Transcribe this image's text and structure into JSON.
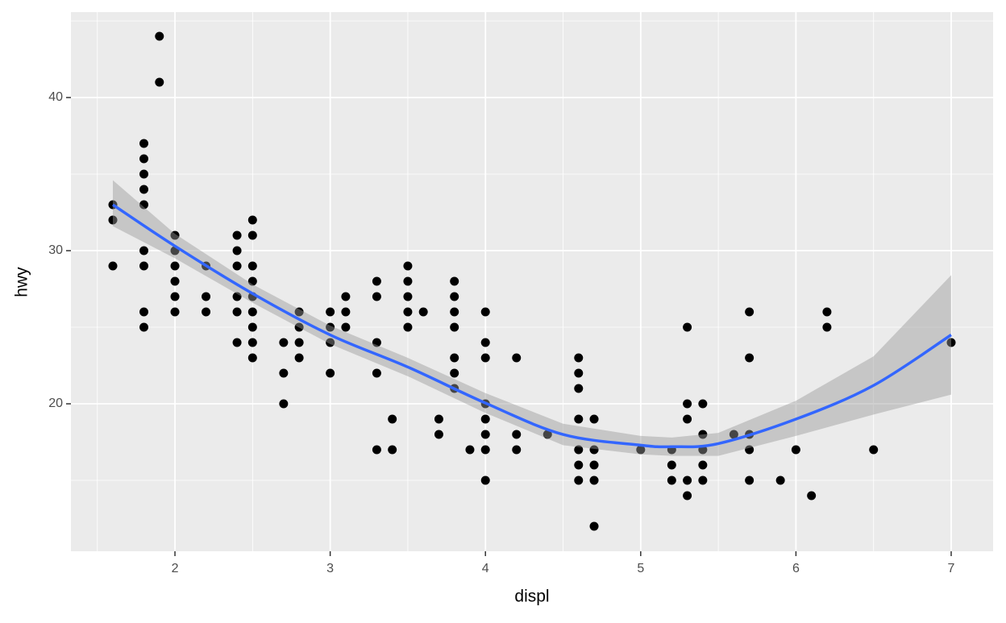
{
  "chart_data": {
    "type": "scatter",
    "x_label": "displ",
    "y_label": "hwy",
    "xlim": [
      1.33,
      7.27
    ],
    "ylim": [
      10.37,
      45.58
    ],
    "xticks": [
      2,
      3,
      4,
      5,
      6,
      7
    ],
    "yticks": [
      20,
      30,
      40
    ],
    "x_minor_grid": [
      1.5,
      2.5,
      3.5,
      4.5,
      5.5,
      6.5
    ],
    "y_minor_grid": [
      15,
      25,
      35,
      45
    ],
    "grid": true,
    "color": "#000000",
    "x": [
      1.6,
      1.6,
      1.6,
      1.8,
      1.8,
      1.8,
      1.8,
      1.8,
      1.8,
      1.8,
      1.8,
      1.8,
      1.9,
      1.9,
      2.0,
      2.0,
      2.0,
      2.0,
      2.0,
      2.0,
      2.2,
      2.2,
      2.2,
      2.4,
      2.4,
      2.4,
      2.4,
      2.4,
      2.4,
      2.5,
      2.5,
      2.5,
      2.5,
      2.5,
      2.5,
      2.5,
      2.5,
      2.5,
      2.7,
      2.7,
      2.7,
      2.8,
      2.8,
      2.8,
      2.8,
      3.0,
      3.0,
      3.0,
      3.0,
      3.1,
      3.1,
      3.1,
      3.3,
      3.3,
      3.3,
      3.3,
      3.3,
      3.4,
      3.4,
      3.5,
      3.5,
      3.5,
      3.5,
      3.5,
      3.6,
      3.7,
      3.7,
      3.8,
      3.8,
      3.8,
      3.8,
      3.8,
      3.8,
      3.8,
      3.9,
      4.0,
      4.0,
      4.0,
      4.0,
      4.0,
      4.0,
      4.0,
      4.0,
      4.2,
      4.2,
      4.2,
      4.4,
      4.6,
      4.6,
      4.6,
      4.6,
      4.6,
      4.6,
      4.6,
      4.7,
      4.7,
      4.7,
      4.7,
      4.7,
      5.0,
      5.2,
      5.2,
      5.2,
      5.3,
      5.3,
      5.3,
      5.3,
      5.3,
      5.4,
      5.4,
      5.4,
      5.4,
      5.4,
      5.6,
      5.7,
      5.7,
      5.7,
      5.7,
      5.7,
      5.9,
      6.0,
      6.1,
      6.2,
      6.2,
      6.5,
      7.0
    ],
    "y": [
      33,
      32,
      29,
      37,
      36,
      35,
      34,
      33,
      30,
      29,
      26,
      25,
      44,
      41,
      31,
      30,
      29,
      28,
      27,
      26,
      29,
      27,
      26,
      31,
      30,
      29,
      27,
      26,
      24,
      32,
      31,
      29,
      28,
      27,
      26,
      25,
      24,
      23,
      24,
      22,
      20,
      26,
      25,
      24,
      23,
      26,
      25,
      24,
      22,
      27,
      26,
      25,
      28,
      27,
      24,
      22,
      17,
      19,
      17,
      29,
      28,
      27,
      26,
      25,
      26,
      19,
      18,
      28,
      27,
      26,
      25,
      23,
      22,
      21,
      17,
      26,
      24,
      23,
      20,
      19,
      18,
      17,
      15,
      23,
      18,
      17,
      18,
      23,
      22,
      21,
      19,
      17,
      16,
      15,
      19,
      17,
      16,
      15,
      12,
      17,
      17,
      16,
      15,
      25,
      20,
      19,
      15,
      14,
      20,
      18,
      17,
      16,
      15,
      18,
      26,
      23,
      18,
      17,
      15,
      15,
      17,
      14,
      26,
      25,
      17,
      24
    ],
    "smooth": {
      "color": "#3366ff",
      "band_color": "#999999",
      "x": [
        1.6,
        2.0,
        2.5,
        3.0,
        3.5,
        4.0,
        4.5,
        5.0,
        5.2,
        5.5,
        6.0,
        6.5,
        7.0
      ],
      "y": [
        33.0,
        30.3,
        27.2,
        24.5,
        22.4,
        20.05,
        18.0,
        17.3,
        17.2,
        17.4,
        19.0,
        21.2,
        24.5
      ],
      "lower": [
        31.6,
        29.5,
        26.6,
        23.9,
        21.8,
        19.4,
        17.3,
        16.7,
        16.6,
        16.6,
        17.9,
        19.3,
        20.6
      ],
      "upper": [
        34.6,
        31.1,
        27.8,
        25.1,
        23.0,
        20.7,
        18.7,
        17.9,
        17.8,
        18.1,
        20.2,
        23.1,
        28.4
      ]
    }
  }
}
